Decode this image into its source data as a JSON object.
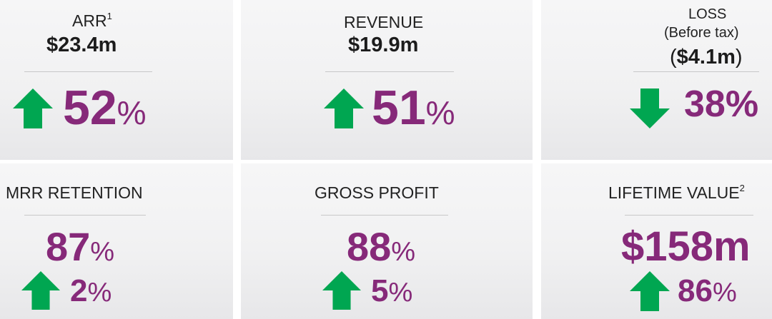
{
  "colors": {
    "accent": "#862979",
    "up": "#00a651",
    "down": "#00a651",
    "text": "#222222"
  },
  "tiles": {
    "arr": {
      "title": "ARR",
      "sup": "1",
      "value": "$23.4m",
      "change": "52",
      "pct": "%",
      "direction": "up"
    },
    "revenue": {
      "title": "REVENUE",
      "value": "$19.9m",
      "change": "51",
      "pct": "%",
      "direction": "up"
    },
    "loss": {
      "title": "LOSS",
      "subtitle": "(Before tax)",
      "value": "$4.1m",
      "open": "(",
      "close": ")",
      "change": "38%",
      "direction": "down"
    },
    "mrr": {
      "title": "MRR RETENTION",
      "value": "87",
      "value_pct": "%",
      "change": "2",
      "pct": "%",
      "direction": "up"
    },
    "gross": {
      "title": "GROSS PROFIT",
      "value": "88",
      "value_pct": "%",
      "change": "5",
      "pct": "%",
      "direction": "up"
    },
    "ltv": {
      "title": "LIFETIME VALUE",
      "sup": "2",
      "value": "$158m",
      "change": "86",
      "pct": "%",
      "direction": "up"
    }
  }
}
